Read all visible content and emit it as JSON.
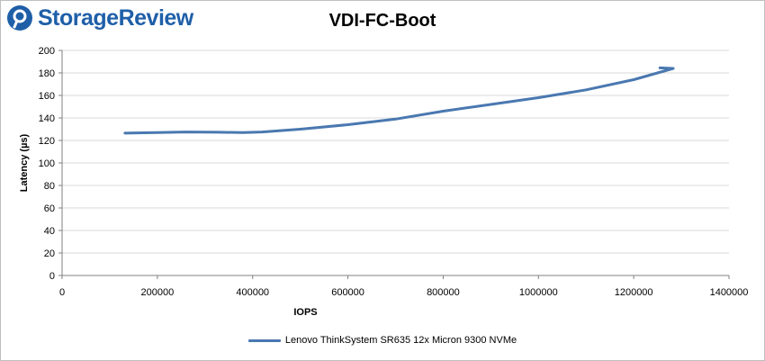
{
  "brand": {
    "name": "StorageReview",
    "color": "#1f5fa8"
  },
  "chart_data": {
    "type": "line",
    "title": "VDI-FC-Boot",
    "xlabel": "IOPS",
    "ylabel": "Latency (µs)",
    "xlim": [
      0,
      1400000
    ],
    "ylim": [
      0,
      200
    ],
    "x_ticks": [
      "0",
      "200000",
      "400000",
      "600000",
      "800000",
      "1000000",
      "1200000",
      "1400000"
    ],
    "y_ticks": [
      "0",
      "20",
      "40",
      "60",
      "80",
      "100",
      "120",
      "140",
      "160",
      "180",
      "200"
    ],
    "grid": "horizontal",
    "legend_position": "bottom",
    "series": [
      {
        "name": "Lenovo ThinkSystem SR635 12x Micron 9300 NVMe",
        "color": "#4a78b0",
        "x": [
          132000,
          200000,
          260000,
          330000,
          380000,
          420000,
          500000,
          600000,
          700000,
          800000,
          900000,
          1000000,
          1100000,
          1200000,
          1250000,
          1283000,
          1255000
        ],
        "y": [
          126.5,
          127,
          127.5,
          127.3,
          127,
          127.5,
          130,
          134,
          139,
          146,
          152,
          158,
          165,
          174,
          180,
          184,
          184.5
        ]
      }
    ]
  }
}
